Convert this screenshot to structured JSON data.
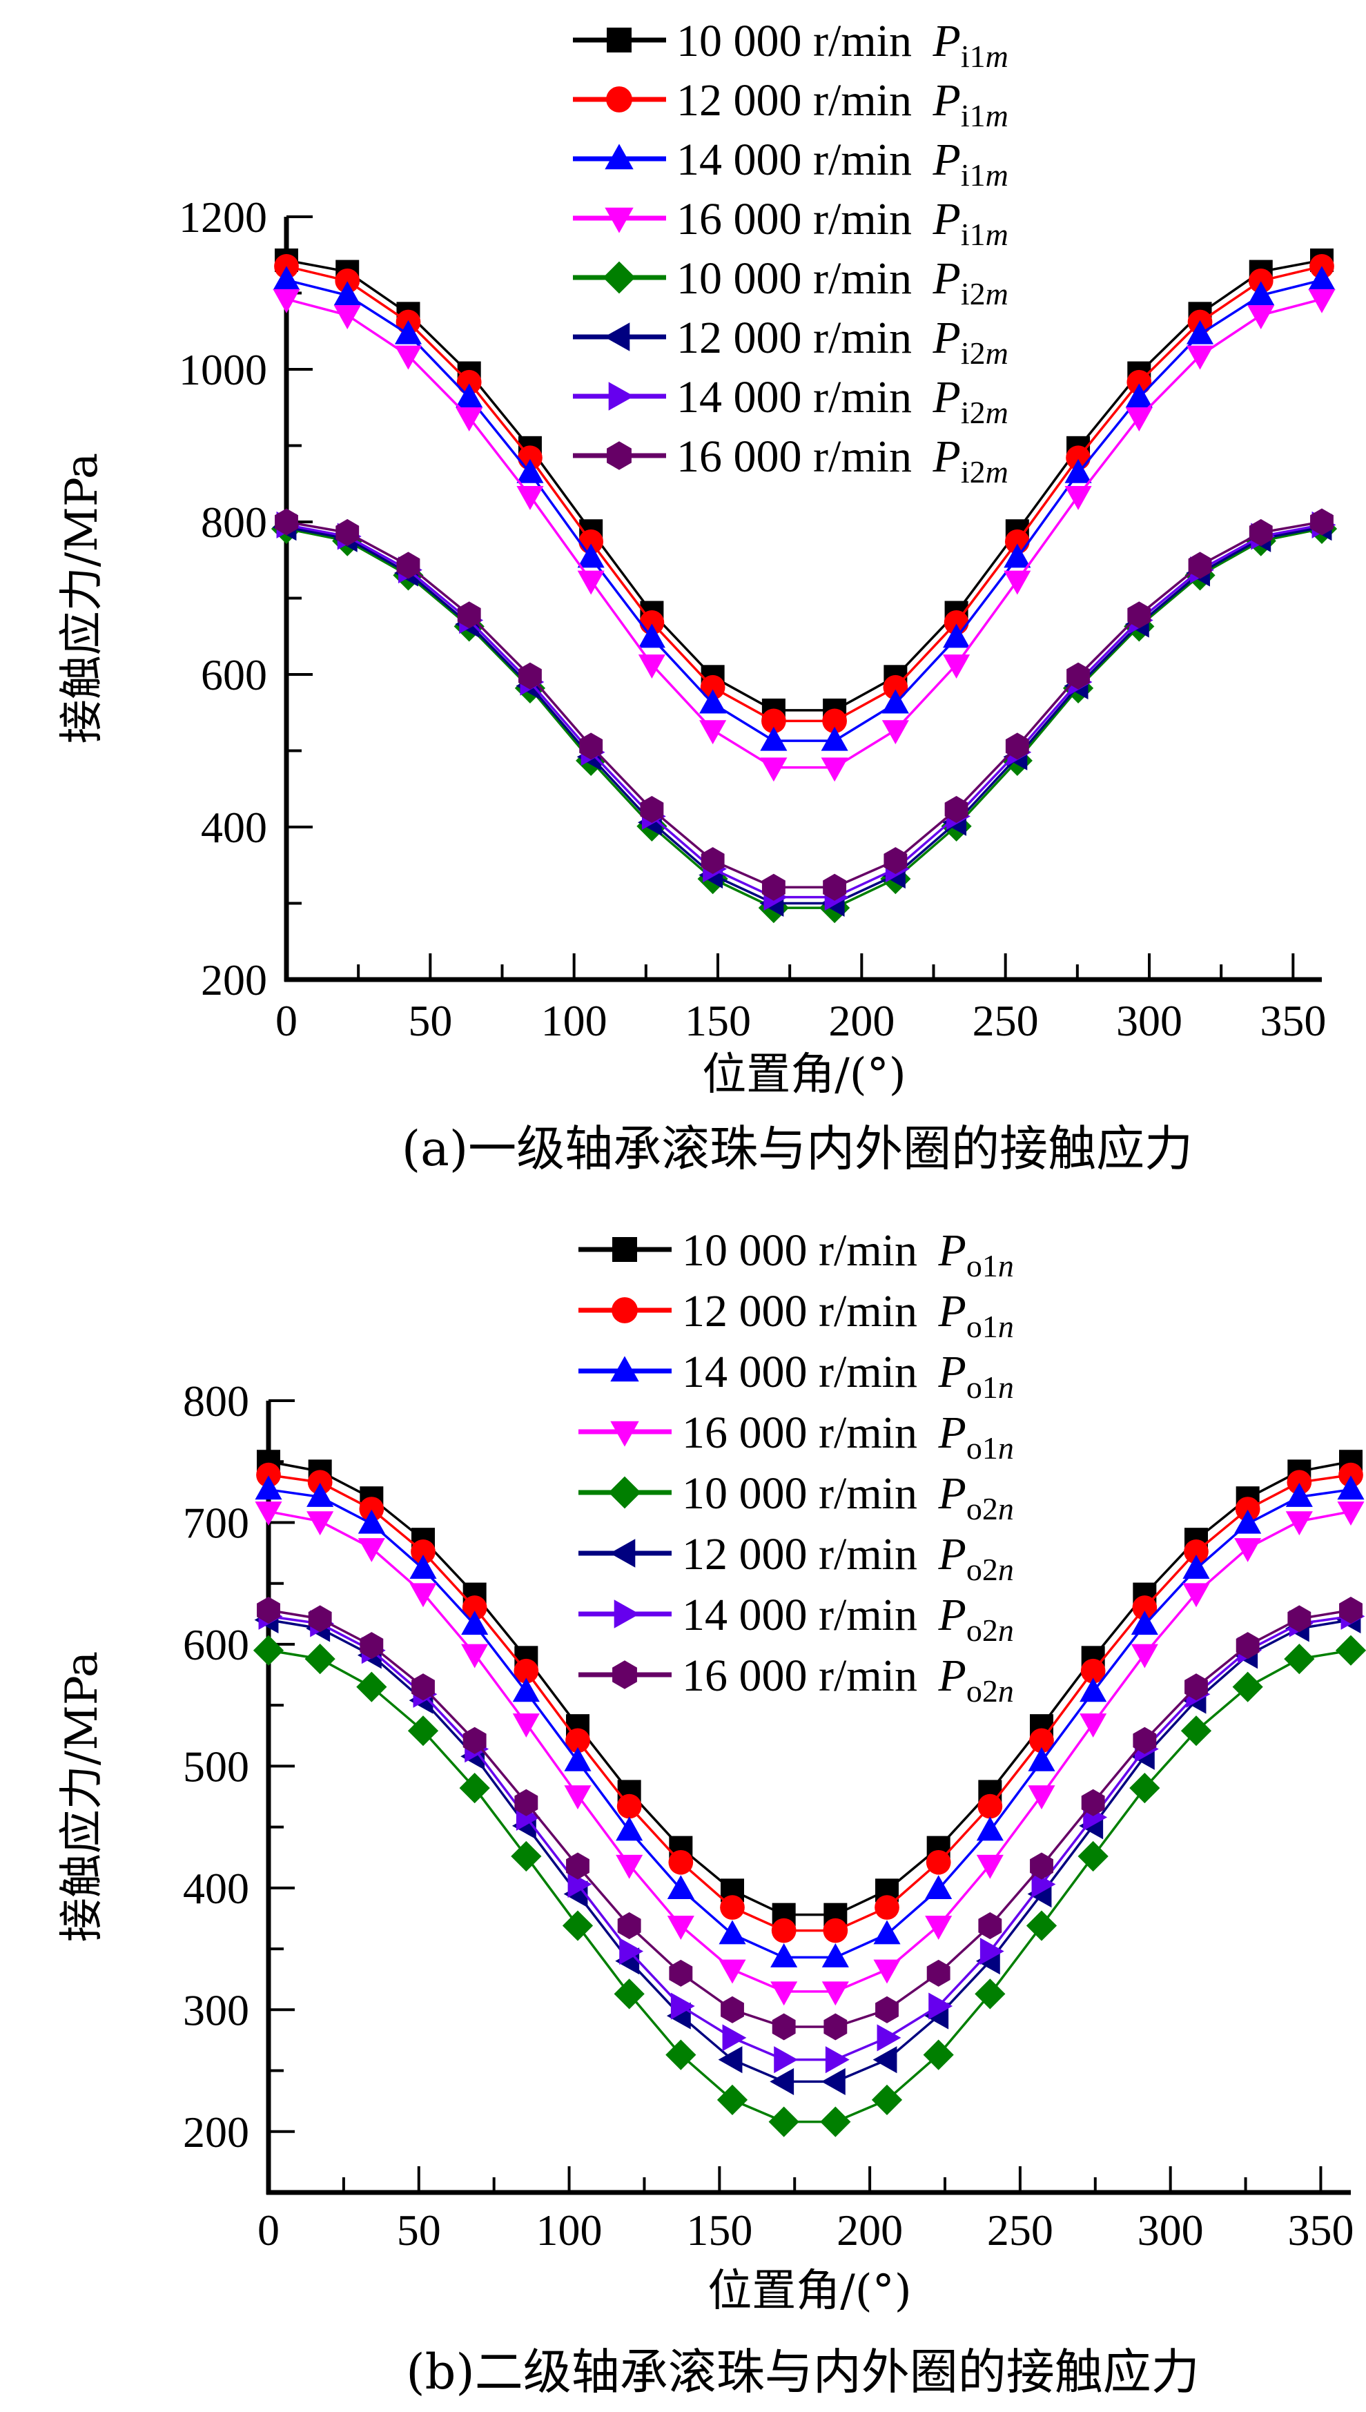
{
  "chart_data": [
    {
      "type": "line",
      "caption": "(a)一级轴承滚珠与内外圈的接触应力",
      "xlabel": "位置角/(°)",
      "ylabel": "接触应力/MPa",
      "xlim": [
        0,
        360
      ],
      "ylim": [
        200,
        1200
      ],
      "xticks": [
        "0",
        "50",
        "100",
        "150",
        "200",
        "250",
        "300",
        "350"
      ],
      "yticks": [
        "200",
        "400",
        "600",
        "800",
        "1000",
        "1200"
      ],
      "legend_position": "top-right",
      "x_step_count": 17,
      "series": [
        {
          "speed": "10 000 r/min",
          "symbol": "P",
          "sub": "i1",
          "subi": "m",
          "color": "#000000",
          "marker": "square",
          "values": [
            1143,
            1128,
            1073,
            995,
            897,
            788,
            681,
            597,
            553,
            553,
            597,
            681,
            788,
            897,
            995,
            1073,
            1128,
            1143
          ]
        },
        {
          "speed": "12 000 r/min",
          "symbol": "P",
          "sub": "i1",
          "subi": "m",
          "color": "#ff0000",
          "marker": "circle",
          "values": [
            1135,
            1116,
            1062,
            983,
            884,
            774,
            668,
            583,
            539,
            539,
            583,
            668,
            774,
            884,
            983,
            1062,
            1116,
            1135
          ]
        },
        {
          "speed": "14 000 r/min",
          "symbol": "P",
          "sub": "i1",
          "subi": "m",
          "color": "#0000ff",
          "marker": "triangle-up",
          "values": [
            1117,
            1097,
            1046,
            963,
            864,
            753,
            648,
            562,
            513,
            513,
            562,
            648,
            753,
            864,
            963,
            1046,
            1097,
            1117
          ]
        },
        {
          "speed": "16 000 r/min",
          "symbol": "P",
          "sub": "i1",
          "subi": "m",
          "color": "#ff00ff",
          "marker": "triangle-down",
          "values": [
            1092,
            1071,
            1018,
            937,
            834,
            723,
            613,
            527,
            478,
            478,
            527,
            613,
            723,
            834,
            937,
            1018,
            1071,
            1092
          ]
        },
        {
          "speed": "10 000 r/min",
          "symbol": "P",
          "sub": "i2",
          "subi": "m",
          "color": "#007f00",
          "marker": "diamond",
          "values": [
            791,
            775,
            730,
            663,
            582,
            487,
            401,
            332,
            294,
            294,
            332,
            401,
            487,
            582,
            663,
            730,
            775,
            791
          ]
        },
        {
          "speed": "12 000 r/min",
          "symbol": "P",
          "sub": "i2",
          "subi": "m",
          "color": "#000080",
          "marker": "triangle-left",
          "values": [
            793,
            778,
            733,
            666,
            585,
            492,
            406,
            337,
            300,
            300,
            337,
            406,
            492,
            585,
            666,
            733,
            778,
            793
          ]
        },
        {
          "speed": "14 000 r/min",
          "symbol": "P",
          "sub": "i2",
          "subi": "m",
          "color": "#6600ee",
          "marker": "triangle-right",
          "values": [
            796,
            781,
            737,
            671,
            590,
            498,
            414,
            345,
            308,
            308,
            345,
            414,
            498,
            590,
            671,
            737,
            781,
            796
          ]
        },
        {
          "speed": "16 000 r/min",
          "symbol": "P",
          "sub": "i2",
          "subi": "m",
          "color": "#660066",
          "marker": "hexagon",
          "values": [
            800,
            786,
            743,
            678,
            598,
            506,
            423,
            356,
            321,
            321,
            356,
            423,
            506,
            598,
            678,
            743,
            786,
            800
          ]
        }
      ]
    },
    {
      "type": "line",
      "caption": "(b)二级轴承滚珠与内外圈的接触应力",
      "xlabel": "位置角/(°)",
      "ylabel": "接触应力/MPa",
      "xlim": [
        0,
        360
      ],
      "ylim": [
        150,
        800
      ],
      "xticks": [
        "0",
        "50",
        "100",
        "150",
        "200",
        "250",
        "300",
        "350"
      ],
      "yticks": [
        "200",
        "300",
        "400",
        "500",
        "600",
        "700",
        "800"
      ],
      "legend_position": "top-right",
      "x_step_count": 21,
      "series": [
        {
          "speed": "10 000 r/min",
          "symbol": "P",
          "sub": "o1",
          "subi": "n",
          "color": "#000000",
          "marker": "square",
          "values": [
            750,
            742,
            720,
            686,
            641,
            589,
            533,
            479,
            433,
            398,
            378,
            378,
            398,
            433,
            479,
            533,
            589,
            641,
            686,
            720,
            742,
            750
          ]
        },
        {
          "speed": "12 000 r/min",
          "symbol": "P",
          "sub": "o1",
          "subi": "n",
          "color": "#ff0000",
          "marker": "circle",
          "values": [
            739,
            733,
            711,
            676,
            630,
            578,
            521,
            467,
            421,
            384,
            365,
            365,
            384,
            421,
            467,
            521,
            578,
            630,
            676,
            711,
            733,
            739
          ]
        },
        {
          "speed": "14 000 r/min",
          "symbol": "P",
          "sub": "o1",
          "subi": "n",
          "color": "#0000ff",
          "marker": "triangle-up",
          "values": [
            727,
            721,
            699,
            662,
            616,
            561,
            504,
            447,
            399,
            362,
            343,
            343,
            362,
            399,
            447,
            504,
            561,
            616,
            662,
            699,
            721,
            727
          ]
        },
        {
          "speed": "16 000 r/min",
          "symbol": "P",
          "sub": "o1",
          "subi": "n",
          "color": "#ff00ff",
          "marker": "triangle-down",
          "values": [
            709,
            701,
            679,
            642,
            592,
            535,
            476,
            419,
            369,
            333,
            315,
            315,
            333,
            369,
            419,
            476,
            535,
            592,
            642,
            679,
            701,
            709
          ]
        },
        {
          "speed": "10 000 r/min",
          "symbol": "P",
          "sub": "o2",
          "subi": "n",
          "color": "#007f00",
          "marker": "diamond",
          "values": [
            595,
            588,
            565,
            529,
            482,
            426,
            369,
            313,
            263,
            226,
            208,
            208,
            226,
            263,
            313,
            369,
            426,
            482,
            529,
            565,
            588,
            595
          ]
        },
        {
          "speed": "12 000 r/min",
          "symbol": "P",
          "sub": "o2",
          "subi": "n",
          "color": "#000080",
          "marker": "triangle-left",
          "values": [
            620,
            613,
            591,
            554,
            508,
            451,
            395,
            340,
            295,
            259,
            241,
            241,
            259,
            295,
            340,
            395,
            451,
            508,
            554,
            591,
            613,
            620
          ]
        },
        {
          "speed": "14 000 r/min",
          "symbol": "P",
          "sub": "o2",
          "subi": "n",
          "color": "#6600ee",
          "marker": "triangle-right",
          "values": [
            623,
            617,
            595,
            559,
            514,
            458,
            403,
            348,
            303,
            277,
            259,
            259,
            277,
            303,
            348,
            403,
            458,
            514,
            559,
            595,
            617,
            623
          ]
        },
        {
          "speed": "16 000 r/min",
          "symbol": "P",
          "sub": "o2",
          "subi": "n",
          "color": "#660066",
          "marker": "hexagon",
          "values": [
            628,
            621,
            599,
            565,
            521,
            470,
            418,
            369,
            330,
            300,
            286,
            286,
            300,
            330,
            369,
            418,
            470,
            521,
            565,
            599,
            621,
            628
          ]
        }
      ]
    }
  ]
}
